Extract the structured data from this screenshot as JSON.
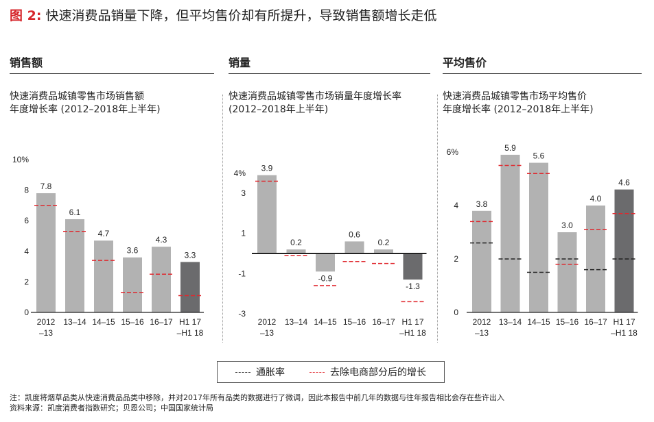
{
  "figure": {
    "title_prefix": "图 2:",
    "title_text": "快速消费品销量下降，但平均售价却有所提升，导致销售额增长走低"
  },
  "colors": {
    "bar": "#b2b2b2",
    "bar_highlight": "#6b6b6d",
    "ecommerce_line": "#e0282e",
    "inflation_line": "#222222",
    "axis": "#222222",
    "title_accent": "#d6262b"
  },
  "panels": [
    {
      "heading": "销售额",
      "subtitle_line1": "快速消费品城镇零售市场销售额",
      "subtitle_line2": "年度增长率 (2012–2018年上半年)"
    },
    {
      "heading": "销量",
      "subtitle_line1": "快速消费品城镇零售市场销量年度增长率",
      "subtitle_line2": "(2012–2018年上半年)"
    },
    {
      "heading": "平均售价",
      "subtitle_line1": "快速消费品城镇零售市场平均售价",
      "subtitle_line2": "年度增长率 (2012–2018年上半年)"
    }
  ],
  "chart_data": [
    {
      "type": "bar",
      "categories": [
        [
          "2012",
          "–13"
        ],
        [
          "13–14"
        ],
        [
          "14–15"
        ],
        [
          "15–16"
        ],
        [
          "16–17"
        ],
        [
          "H1 17",
          "–H1 18"
        ]
      ],
      "values": [
        7.8,
        6.1,
        4.7,
        3.6,
        4.3,
        3.3
      ],
      "value_labels": [
        "7.8",
        "6.1",
        "4.7",
        "3.6",
        "4.3",
        "3.3"
      ],
      "ecommerce_excluded_growth": [
        7.0,
        5.3,
        3.4,
        1.3,
        2.5,
        1.1
      ],
      "inflation": null,
      "highlight_last": true,
      "ylim": [
        0,
        10
      ],
      "ticks": [
        0,
        2,
        4,
        6,
        8,
        10
      ],
      "tick_labels": [
        "0",
        "2",
        "4",
        "6",
        "8",
        "10%"
      ]
    },
    {
      "type": "bar",
      "categories": [
        [
          "2012",
          "–13"
        ],
        [
          "13–14"
        ],
        [
          "14–15"
        ],
        [
          "15–16"
        ],
        [
          "16–17"
        ],
        [
          "H1 17",
          "–H1 18"
        ]
      ],
      "values": [
        3.9,
        0.2,
        -0.9,
        0.6,
        0.2,
        -1.3
      ],
      "value_labels": [
        "3.9",
        "0.2",
        "-0.9",
        "0.6",
        "0.2",
        "-1.3"
      ],
      "ecommerce_excluded_growth": [
        3.6,
        -0.1,
        -1.6,
        -0.4,
        -0.5,
        -2.4
      ],
      "inflation": null,
      "highlight_last": true,
      "ylim": [
        -3,
        4
      ],
      "ticks": [
        -3,
        -1,
        1,
        3,
        4
      ],
      "tick_labels": [
        "-3",
        "-1",
        "1",
        "3",
        "4%"
      ]
    },
    {
      "type": "bar",
      "categories": [
        [
          "2012",
          "–13"
        ],
        [
          "13–14"
        ],
        [
          "14–15"
        ],
        [
          "15–16"
        ],
        [
          "16–17"
        ],
        [
          "H1 17",
          "–H1 18"
        ]
      ],
      "values": [
        3.8,
        5.9,
        5.6,
        3.0,
        4.0,
        4.6
      ],
      "value_labels": [
        "3.8",
        "5.9",
        "5.6",
        "3.0",
        "4.0",
        "4.6"
      ],
      "ecommerce_excluded_growth": [
        3.4,
        5.5,
        5.2,
        1.8,
        3.1,
        3.7
      ],
      "inflation": [
        2.6,
        2.0,
        1.5,
        2.0,
        1.6,
        2.0
      ],
      "highlight_last": true,
      "ylim": [
        0,
        6
      ],
      "ticks": [
        0,
        2,
        4,
        6
      ],
      "tick_labels": [
        "0",
        "2",
        "4",
        "6%"
      ]
    }
  ],
  "legend": {
    "inflation_label": "通胀率",
    "ecommerce_label": "去除电商部分后的增长"
  },
  "notes": {
    "note": "注：凯度将烟草品类从快速消费品品类中移除，并对2017年所有品类的数据进行了微调，因此本报告中前几年的数据与往年报告相比会存在些许出入",
    "source": "资料来源：凯度消费者指数研究；贝恩公司；中国国家统计局"
  }
}
